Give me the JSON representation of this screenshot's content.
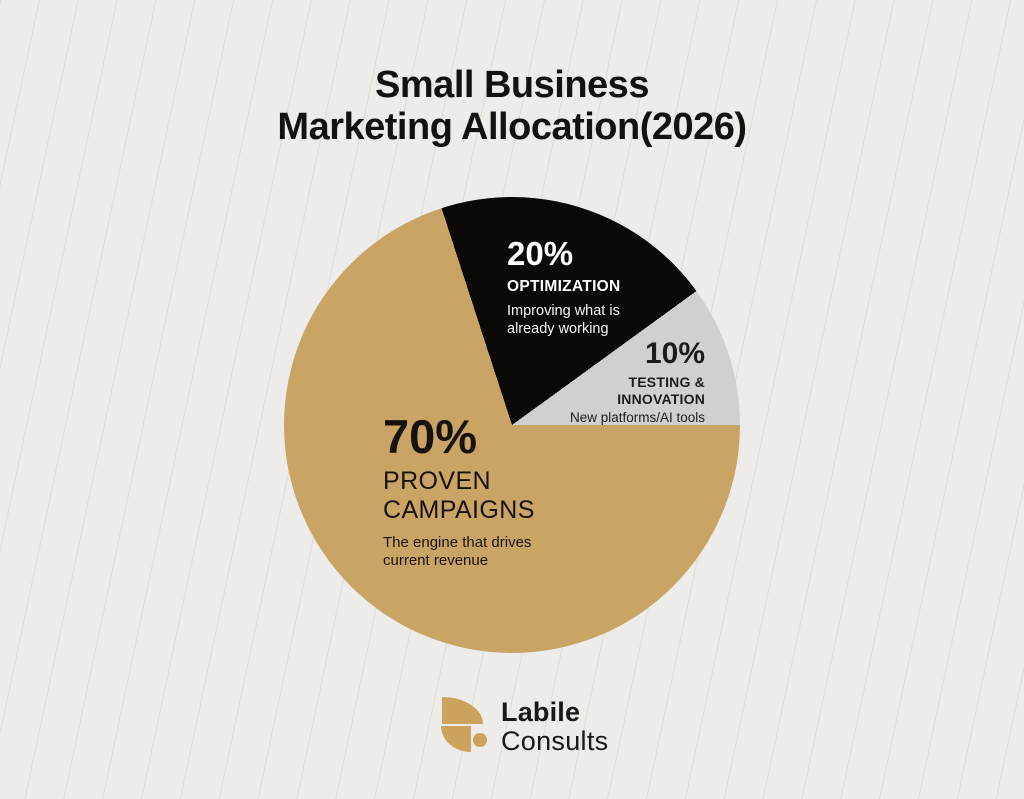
{
  "page": {
    "background": "#EDECEA",
    "pinstripe_color": "rgba(194,174,124,0.28)"
  },
  "chart_data": {
    "type": "pie",
    "title": "Small Business\nMarketing Allocation(2026)",
    "start_angle_deg": -18,
    "direction": "clockwise",
    "legend_position": "labels-inside-slices",
    "slices": [
      {
        "label": "OPTIMIZATION",
        "value": 20,
        "pct_label": "20%",
        "description": "Improving what is\nalready working",
        "color": "#0A0908",
        "text_color": "#FFFFFF"
      },
      {
        "label": "TESTING &\nINNOVATION",
        "value": 10,
        "pct_label": "10%",
        "description": "New platforms/AI tools",
        "color": "#D0D0CE",
        "text_color": "#1C1C1C"
      },
      {
        "label": "PROVEN\nCAMPAIGNS",
        "value": 70,
        "pct_label": "70%",
        "description": "The engine that drives\ncurrent revenue",
        "color": "#C9A464",
        "text_color": "#16120B"
      }
    ]
  },
  "brand": {
    "name_line1": "Labile",
    "name_line2": "Consults",
    "logo_color": "#CCA25C",
    "text_color": "#18171B"
  }
}
